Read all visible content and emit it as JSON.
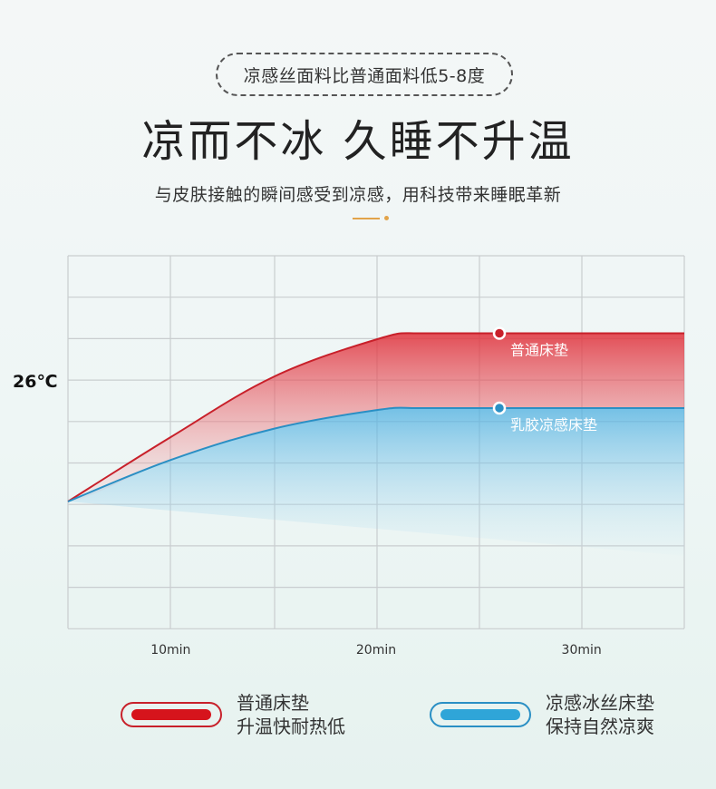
{
  "header": {
    "badge": "凉感丝面料比普通面料低5-8度",
    "title": "凉而不冰 久睡不升温",
    "subtitle": "与皮肤接触的瞬间感受到凉感，用科技带来睡眠革新"
  },
  "chart_data": {
    "type": "area",
    "x_unit": "min",
    "x_ticks": [
      10,
      20,
      30
    ],
    "x_tick_labels": [
      "10min",
      "20min",
      "30min"
    ],
    "y_ticks": [
      "26℃"
    ],
    "xlim": [
      5,
      35
    ],
    "grid": true,
    "series": [
      {
        "name": "普通床垫",
        "color": "#c8202a",
        "marker_x": 26,
        "points": [
          [
            5,
            0
          ],
          [
            10,
            1.55
          ],
          [
            15,
            3.0
          ],
          [
            20,
            3.9
          ],
          [
            22,
            4.05
          ],
          [
            25,
            4.05
          ],
          [
            30,
            4.05
          ],
          [
            35,
            4.05
          ]
        ]
      },
      {
        "name": "乳胶凉感床垫",
        "color": "#2a8fc4",
        "marker_x": 26,
        "points": [
          [
            5,
            0
          ],
          [
            10,
            1.0
          ],
          [
            15,
            1.75
          ],
          [
            20,
            2.2
          ],
          [
            22,
            2.25
          ],
          [
            25,
            2.25
          ],
          [
            30,
            2.25
          ],
          [
            35,
            2.25
          ]
        ]
      }
    ]
  },
  "legend": [
    {
      "line1": "普通床垫",
      "line2": "升温快耐热低",
      "color": "#d6141c",
      "border": "#c8202a"
    },
    {
      "line1": "凉感冰丝床垫",
      "line2": "保持自然凉爽",
      "color": "#2fa5d8",
      "border": "#2a8fc4"
    }
  ]
}
